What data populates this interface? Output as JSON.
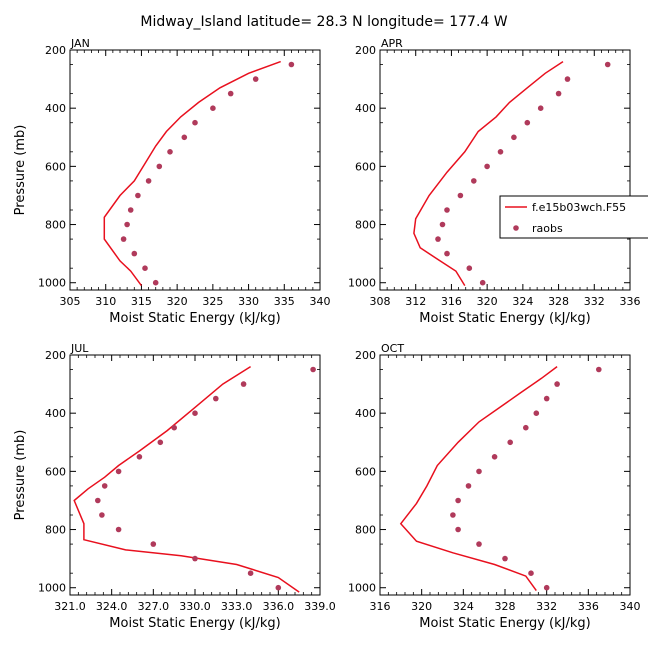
{
  "title": "Midway_Island  latitude= 28.3 N longitude= 177.4 W",
  "colors": {
    "model": "#e8101e",
    "raobs": "#b03a5b"
  },
  "legend": {
    "model_label": "f.e15b03wch.F55",
    "raobs_label": "raobs"
  },
  "chart_data": [
    {
      "type": "line",
      "title": "JAN",
      "xlabel": "Moist Static Energy (kJ/kg)",
      "ylabel": "Pressure (mb)",
      "xlim": [
        305,
        340
      ],
      "xticks": [
        305,
        310,
        315,
        320,
        325,
        330,
        335,
        340
      ],
      "xtick_labels": [
        "305",
        "310",
        "315",
        "320",
        "325",
        "330",
        "335",
        "340"
      ],
      "ylim": [
        200,
        1025
      ],
      "yticks": [
        200,
        400,
        600,
        800,
        1000
      ],
      "y_inverted": true,
      "series": [
        {
          "name": "f.e15b03wch.F55",
          "kind": "line",
          "points": [
            [
              334.5,
              240
            ],
            [
              330,
              280
            ],
            [
              326,
              330
            ],
            [
              323,
              380
            ],
            [
              320.5,
              430
            ],
            [
              318.5,
              480
            ],
            [
              317,
              530
            ],
            [
              315.5,
              590
            ],
            [
              314,
              650
            ],
            [
              312,
              700
            ],
            [
              309.8,
              775
            ],
            [
              309.8,
              850
            ],
            [
              312,
              925
            ],
            [
              313.5,
              960
            ],
            [
              315,
              1010
            ]
          ]
        },
        {
          "name": "raobs",
          "kind": "scatter",
          "points": [
            [
              336,
              250
            ],
            [
              331,
              300
            ],
            [
              327.5,
              350
            ],
            [
              325,
              400
            ],
            [
              322.5,
              450
            ],
            [
              321,
              500
            ],
            [
              319,
              550
            ],
            [
              317.5,
              600
            ],
            [
              316,
              650
            ],
            [
              314.5,
              700
            ],
            [
              313.5,
              750
            ],
            [
              313,
              800
            ],
            [
              312.5,
              850
            ],
            [
              314,
              900
            ],
            [
              315.5,
              950
            ],
            [
              317,
              1000
            ]
          ]
        }
      ]
    },
    {
      "type": "line",
      "title": "APR",
      "xlabel": "Moist Static Energy (kJ/kg)",
      "ylabel": "",
      "xlim": [
        308,
        336
      ],
      "xticks": [
        308,
        312,
        316,
        320,
        324,
        328,
        332,
        336
      ],
      "xtick_labels": [
        "308",
        "312",
        "316",
        "320",
        "324",
        "328",
        "332",
        "336"
      ],
      "ylim": [
        200,
        1025
      ],
      "yticks": [
        200,
        400,
        600,
        800,
        1000
      ],
      "y_inverted": true,
      "series": [
        {
          "name": "f.e15b03wch.F55",
          "kind": "line",
          "points": [
            [
              328.5,
              240
            ],
            [
              326.5,
              280
            ],
            [
              324.5,
              330
            ],
            [
              322.5,
              380
            ],
            [
              321,
              430
            ],
            [
              319,
              480
            ],
            [
              317.5,
              550
            ],
            [
              315.5,
              620
            ],
            [
              313.5,
              700
            ],
            [
              312,
              780
            ],
            [
              311.8,
              830
            ],
            [
              312.5,
              880
            ],
            [
              314.5,
              920
            ],
            [
              316.5,
              960
            ],
            [
              317.5,
              1010
            ]
          ]
        },
        {
          "name": "raobs",
          "kind": "scatter",
          "points": [
            [
              333.5,
              250
            ],
            [
              329,
              300
            ],
            [
              328,
              350
            ],
            [
              326,
              400
            ],
            [
              324.5,
              450
            ],
            [
              323,
              500
            ],
            [
              321.5,
              550
            ],
            [
              320,
              600
            ],
            [
              318.5,
              650
            ],
            [
              317,
              700
            ],
            [
              315.5,
              750
            ],
            [
              315,
              800
            ],
            [
              314.5,
              850
            ],
            [
              315.5,
              900
            ],
            [
              318,
              950
            ],
            [
              319.5,
              1000
            ]
          ]
        }
      ]
    },
    {
      "type": "line",
      "title": "JUL",
      "xlabel": "Moist Static Energy (kJ/kg)",
      "ylabel": "Pressure (mb)",
      "xlim": [
        321,
        339
      ],
      "xticks": [
        321,
        324,
        327,
        330,
        333,
        336,
        339
      ],
      "xtick_labels": [
        "321.0",
        "324.0",
        "327.0",
        "330.0",
        "333.0",
        "336.0",
        "339.0"
      ],
      "ylim": [
        200,
        1025
      ],
      "yticks": [
        200,
        400,
        600,
        800,
        1000
      ],
      "y_inverted": true,
      "series": [
        {
          "name": "f.e15b03wch.F55",
          "kind": "line",
          "points": [
            [
              334,
              240
            ],
            [
              332,
              300
            ],
            [
              330,
              380
            ],
            [
              328,
              460
            ],
            [
              326,
              530
            ],
            [
              324.5,
              580
            ],
            [
              323.5,
              620
            ],
            [
              322.3,
              660
            ],
            [
              321.3,
              700
            ],
            [
              322,
              780
            ],
            [
              322,
              835
            ],
            [
              325,
              870
            ],
            [
              329,
              890
            ],
            [
              333,
              920
            ],
            [
              336,
              965
            ],
            [
              337.5,
              1015
            ]
          ]
        },
        {
          "name": "raobs",
          "kind": "scatter",
          "points": [
            [
              338.5,
              250
            ],
            [
              333.5,
              300
            ],
            [
              331.5,
              350
            ],
            [
              330,
              400
            ],
            [
              328.5,
              450
            ],
            [
              327.5,
              500
            ],
            [
              326,
              550
            ],
            [
              324.5,
              600
            ],
            [
              323.5,
              650
            ],
            [
              323,
              700
            ],
            [
              323.3,
              750
            ],
            [
              324.5,
              800
            ],
            [
              327,
              850
            ],
            [
              330,
              900
            ],
            [
              334,
              950
            ],
            [
              336,
              1000
            ]
          ]
        }
      ]
    },
    {
      "type": "line",
      "title": "OCT",
      "xlabel": "Moist Static Energy (kJ/kg)",
      "ylabel": "",
      "xlim": [
        316,
        340
      ],
      "xticks": [
        316,
        320,
        324,
        328,
        332,
        336,
        340
      ],
      "xtick_labels": [
        "316",
        "320",
        "324",
        "328",
        "332",
        "336",
        "340"
      ],
      "ylim": [
        200,
        1025
      ],
      "yticks": [
        200,
        400,
        600,
        800,
        1000
      ],
      "y_inverted": true,
      "series": [
        {
          "name": "f.e15b03wch.F55",
          "kind": "line",
          "points": [
            [
              333,
              240
            ],
            [
              331.5,
              280
            ],
            [
              329.5,
              330
            ],
            [
              327.5,
              380
            ],
            [
              325.5,
              430
            ],
            [
              323.5,
              500
            ],
            [
              321.5,
              580
            ],
            [
              320.5,
              650
            ],
            [
              319.5,
              710
            ],
            [
              318,
              780
            ],
            [
              319.5,
              840
            ],
            [
              323,
              880
            ],
            [
              327,
              920
            ],
            [
              330,
              960
            ],
            [
              331,
              1010
            ]
          ]
        },
        {
          "name": "raobs",
          "kind": "scatter",
          "points": [
            [
              337,
              250
            ],
            [
              333,
              300
            ],
            [
              332,
              350
            ],
            [
              331,
              400
            ],
            [
              330,
              450
            ],
            [
              328.5,
              500
            ],
            [
              327,
              550
            ],
            [
              325.5,
              600
            ],
            [
              324.5,
              650
            ],
            [
              323.5,
              700
            ],
            [
              323,
              750
            ],
            [
              323.5,
              800
            ],
            [
              325.5,
              850
            ],
            [
              328,
              900
            ],
            [
              330.5,
              950
            ],
            [
              332,
              1000
            ]
          ]
        }
      ]
    }
  ]
}
